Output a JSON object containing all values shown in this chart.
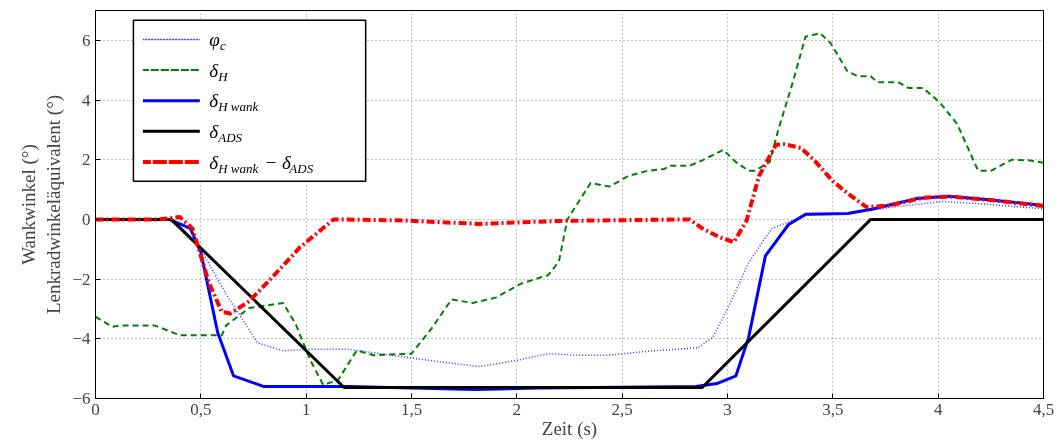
{
  "chart_data": {
    "type": "line",
    "xlabel": "Zeit (s)",
    "ylabel": "Wankwinkel (°)\nLenkradwinkeläquivalent (°)",
    "xlim": [
      0,
      4.5
    ],
    "ylim": [
      -6,
      7
    ],
    "xticks": [
      0,
      {
        "value": 0.5,
        "label": "0,5"
      },
      1,
      {
        "value": 1.5,
        "label": "1,5"
      },
      2,
      {
        "value": 2.5,
        "label": "2,5"
      },
      3,
      {
        "value": 3.5,
        "label": "3,5"
      },
      4,
      {
        "value": 4.5,
        "label": "4,5"
      }
    ],
    "yticks": [
      -6,
      -4,
      -2,
      0,
      2,
      4,
      6
    ],
    "grid": true,
    "legend": "top left",
    "series": [
      {
        "name": "φ$_{c}$",
        "color": "#3333ff",
        "line_style": "dotted",
        "x": [
          0,
          0.35,
          0.5,
          0.62,
          0.77,
          0.89,
          1.02,
          1.2,
          1.58,
          1.82,
          2.0,
          2.15,
          2.3,
          2.43,
          2.65,
          2.86,
          2.93,
          3.01,
          3.1,
          3.21,
          3.37,
          3.58,
          3.77,
          4.02,
          4.25,
          4.5
        ],
        "values": [
          0,
          0,
          -1.0,
          -2.5,
          -4.14,
          -4.4,
          -4.35,
          -4.35,
          -4.72,
          -4.93,
          -4.72,
          -4.5,
          -4.55,
          -4.55,
          -4.4,
          -4.3,
          -3.95,
          -2.85,
          -1.45,
          -0.3,
          0.13,
          0.2,
          0.4,
          0.6,
          0.5,
          0.35
        ]
      },
      {
        "name": "δ$_{H}$",
        "color": "#008000",
        "line_style": "dashed",
        "x": [
          0,
          0.08,
          0.12,
          0.28,
          0.4,
          0.6,
          0.62,
          0.73,
          0.89,
          0.95,
          1.02,
          1.08,
          1.15,
          1.24,
          1.32,
          1.5,
          1.6,
          1.69,
          1.79,
          1.9,
          2.02,
          2.15,
          2.2,
          2.24,
          2.35,
          2.44,
          2.53,
          2.62,
          2.7,
          2.73,
          2.82,
          2.88,
          2.98,
          3.04,
          3.1,
          3.13,
          3.2,
          3.24,
          3.31,
          3.37,
          3.44,
          3.49,
          3.57,
          3.62,
          3.68,
          3.71,
          3.81,
          3.86,
          3.93,
          4.01,
          4.09,
          4.19,
          4.25,
          4.35,
          4.43,
          4.5
        ],
        "values": [
          -3.26,
          -3.6,
          -3.55,
          -3.55,
          -3.88,
          -3.88,
          -3.55,
          -2.97,
          -2.8,
          -3.5,
          -4.72,
          -5.53,
          -5.4,
          -4.39,
          -4.55,
          -4.5,
          -3.61,
          -2.68,
          -2.8,
          -2.62,
          -2.15,
          -1.86,
          -1.4,
          0,
          1.22,
          1.1,
          1.46,
          1.63,
          1.69,
          1.8,
          1.8,
          1.98,
          2.33,
          1.92,
          1.63,
          1.63,
          1.92,
          2.97,
          4.6,
          6.12,
          6.24,
          5.9,
          4.95,
          4.8,
          4.8,
          4.6,
          4.6,
          4.4,
          4.4,
          3.9,
          3.2,
          1.63,
          1.63,
          2.0,
          1.98,
          1.9
        ]
      },
      {
        "name": "δ$_{H wank}$",
        "color": "#0000ff",
        "line_style": "solid",
        "x": [
          0,
          0.35,
          0.45,
          0.5,
          0.58,
          0.655,
          0.8,
          1.2,
          1.5,
          1.8,
          2.1,
          2.5,
          2.85,
          2.95,
          3.04,
          3.1,
          3.18,
          3.29,
          3.37,
          3.57,
          3.69,
          3.9,
          4.05,
          4.25,
          4.5
        ],
        "values": [
          0,
          0,
          -0.3,
          -1.1,
          -3.79,
          -5.24,
          -5.6,
          -5.6,
          -5.65,
          -5.7,
          -5.65,
          -5.62,
          -5.6,
          -5.5,
          -5.24,
          -3.96,
          -1.22,
          -0.17,
          0.17,
          0.2,
          0.35,
          0.7,
          0.78,
          0.65,
          0.47
        ]
      },
      {
        "name": "δ$_{ADS}$",
        "color": "#000000",
        "line_style": "solid",
        "x": [
          0,
          0.36,
          1.18,
          2.88,
          3.68,
          4.5
        ],
        "values": [
          0,
          0,
          -5.63,
          -5.63,
          0,
          0
        ]
      },
      {
        "name": "δ$_{H wank}$ − δ$_{ADS}$",
        "color": "#ff0000",
        "line_style": "dashdot",
        "x": [
          0,
          0.3,
          0.4,
          0.46,
          0.54,
          0.6,
          0.64,
          0.73,
          0.84,
          0.97,
          1.13,
          1.44,
          1.82,
          2.2,
          2.82,
          2.88,
          2.96,
          3.03,
          3.09,
          3.15,
          3.23,
          3.27,
          3.35,
          3.42,
          3.5,
          3.58,
          3.66,
          3.77,
          3.93,
          4.06,
          4.25,
          4.5
        ],
        "values": [
          0,
          0,
          0.08,
          -0.3,
          -2.15,
          -3.1,
          -3.15,
          -2.74,
          -1.93,
          -0.94,
          0,
          -0.03,
          -0.15,
          -0.05,
          0,
          -0.3,
          -0.59,
          -0.76,
          -0.05,
          1.46,
          2.5,
          2.52,
          2.39,
          1.92,
          1.28,
          0.82,
          0.41,
          0.47,
          0.73,
          0.76,
          0.65,
          0.45
        ]
      }
    ]
  }
}
